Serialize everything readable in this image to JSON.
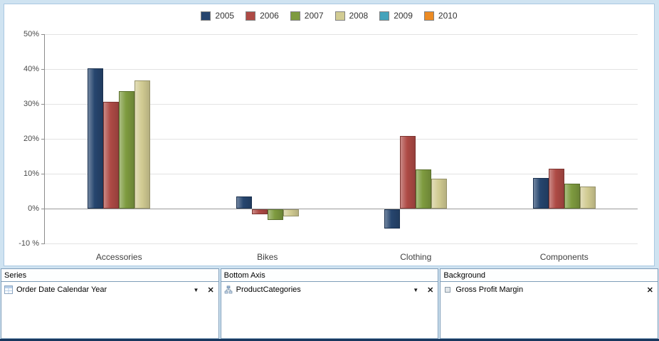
{
  "chart_data": {
    "type": "bar",
    "title": "",
    "xlabel": "",
    "ylabel": "",
    "categories": [
      "Accessories",
      "Bikes",
      "Clothing",
      "Components"
    ],
    "series": [
      {
        "name": "2005",
        "color": "#26456e",
        "values": [
          40.3,
          3.5,
          -5.5,
          8.8
        ]
      },
      {
        "name": "2006",
        "color": "#ae4a45",
        "values": [
          30.6,
          -1.5,
          20.9,
          11.5
        ]
      },
      {
        "name": "2007",
        "color": "#7e9b3f",
        "values": [
          33.7,
          -3.0,
          11.2,
          7.2
        ]
      },
      {
        "name": "2008",
        "color": "#d2cc93",
        "values": [
          36.8,
          -2.0,
          8.5,
          6.3
        ]
      },
      {
        "name": "2009",
        "color": "#44a3bb",
        "values": [
          null,
          null,
          null,
          null
        ]
      },
      {
        "name": "2010",
        "color": "#ec8b24",
        "values": [
          null,
          null,
          null,
          null
        ]
      }
    ],
    "ylim": [
      -10,
      50
    ],
    "yticks": [
      {
        "value": 50,
        "label": "50%"
      },
      {
        "value": 40,
        "label": "40%"
      },
      {
        "value": 30,
        "label": "30%"
      },
      {
        "value": 20,
        "label": "20%"
      },
      {
        "value": 10,
        "label": "10%"
      },
      {
        "value": 0,
        "label": "0%"
      },
      {
        "value": -10,
        "label": "-10 %"
      }
    ],
    "grid": true,
    "legend_position": "top"
  },
  "field_panels": [
    {
      "id": "series",
      "header": "Series",
      "fields": [
        {
          "label": "Order Date Calendar Year",
          "icon": "dimension-icon",
          "dropdown": true,
          "remove": true
        }
      ]
    },
    {
      "id": "bottom-axis",
      "header": "Bottom Axis",
      "fields": [
        {
          "label": "ProductCategories",
          "icon": "hierarchy-icon",
          "dropdown": true,
          "remove": true
        }
      ]
    },
    {
      "id": "background",
      "header": "Background",
      "fields": [
        {
          "label": "Gross Profit Margin",
          "icon": "measure-icon",
          "dropdown": false,
          "remove": true
        }
      ]
    }
  ],
  "ui": {
    "dropdown_glyph": "▼",
    "remove_glyph": "✕",
    "accent_border": "#7f9db9",
    "page_background": "#cfe3f1",
    "window_bottom_color": "#17375e"
  }
}
